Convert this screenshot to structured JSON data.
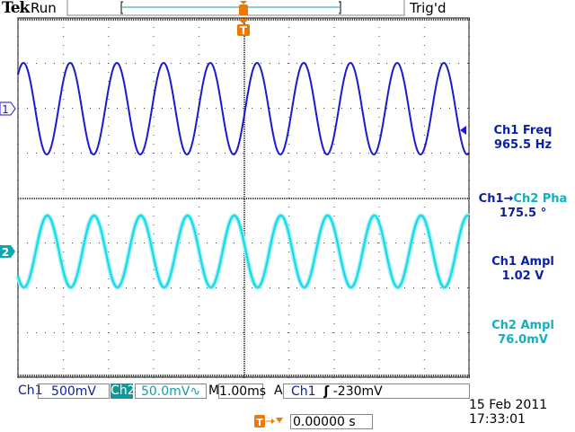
{
  "header": {
    "brand": "Tek",
    "status": "Run",
    "trigger_status": "Trig'd",
    "trigger_marker": "T"
  },
  "channels": [
    {
      "id": "1",
      "label": "Ch1",
      "scale": "500mV",
      "color": "#1a1ad0"
    },
    {
      "id": "2",
      "label": "Ch2",
      "scale": "50.0mV",
      "bandwidth_icon": "∿",
      "color": "#10d8e8"
    }
  ],
  "timebase": {
    "prefix": "M",
    "scale": "1.00ms"
  },
  "trigger": {
    "mode": "A",
    "source": "Ch1",
    "slope_icon": "rising-edge",
    "slope_glyph": "ʃ",
    "level": "-230mV"
  },
  "trigger_position": {
    "value": "0.00000 s"
  },
  "measurements": [
    {
      "name": "Ch1 Freq",
      "value": "965.5 Hz",
      "color": "blue"
    },
    {
      "name_a": "Ch1",
      "arrow": "→",
      "name_b": "Ch2 Pha",
      "value": "175.5 °",
      "color": "blue"
    },
    {
      "name": "Ch1 Ampl",
      "value": "1.02 V",
      "color": "blue"
    },
    {
      "name": "Ch2 Ampl",
      "value": "76.0mV",
      "color": "teal"
    }
  ],
  "datetime": {
    "date": "15 Feb  2011",
    "time": "17:33:01"
  },
  "signal": {
    "ch1_freq_hz": 965.5,
    "phase_deg": 175.5,
    "time_per_div_ms": 1.0
  }
}
